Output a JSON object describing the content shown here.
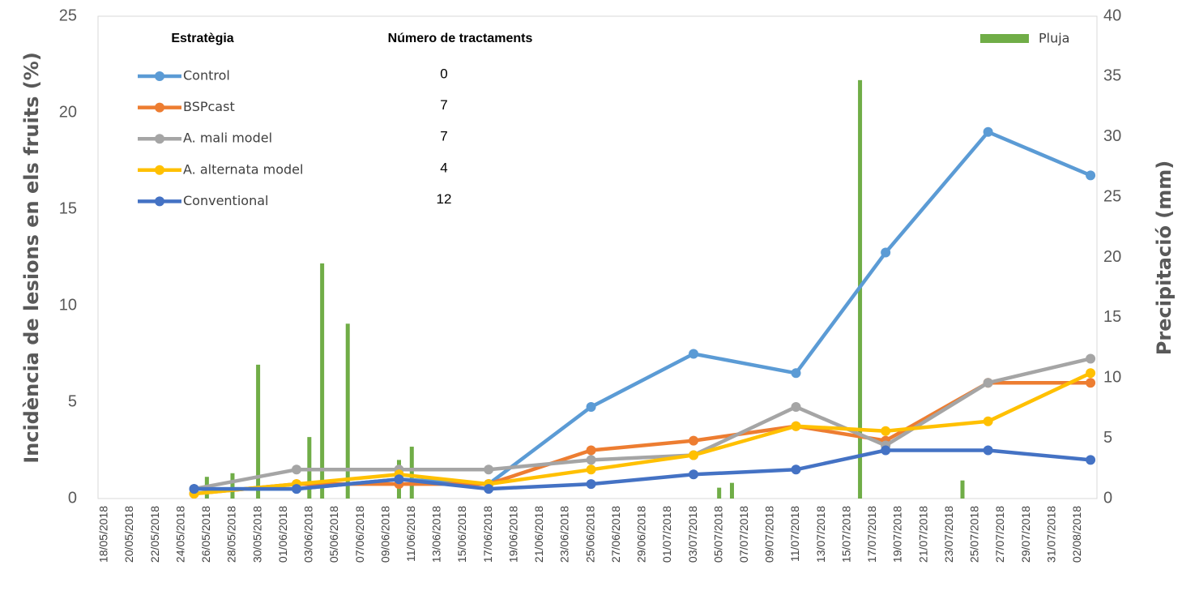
{
  "chart_data": {
    "type": "line",
    "y_label": "Incidència de lesions en els fruits (%)",
    "y2_label": "Precipitació (mm)",
    "legend_header": "Estratègia",
    "treatments_header": "Número de tractaments",
    "connect_gaps": true,
    "categories": [
      "18/05/2018",
      null,
      "20/05/2018",
      null,
      "22/05/2018",
      null,
      "24/05/2018",
      null,
      "26/05/2018",
      null,
      "28/05/2018",
      null,
      "30/05/2018",
      null,
      "01/06/2018",
      null,
      "03/06/2018",
      null,
      "05/06/2018",
      null,
      "07/06/2018",
      null,
      "09/06/2018",
      null,
      "11/06/2018",
      null,
      "13/06/2018",
      null,
      "15/06/2018",
      null,
      "17/06/2018",
      null,
      "19/06/2018",
      null,
      "21/06/2018",
      null,
      "23/06/2018",
      null,
      "25/06/2018",
      null,
      "27/06/2018",
      null,
      "29/06/2018",
      null,
      "01/07/2018",
      null,
      "03/07/2018",
      null,
      "05/07/2018",
      null,
      "07/07/2018",
      null,
      "09/07/2018",
      null,
      "11/07/2018",
      null,
      "13/07/2018",
      null,
      "15/07/2018",
      null,
      "17/07/2018",
      null,
      "19/07/2018",
      null,
      "21/07/2018",
      null,
      "23/07/2018",
      null,
      "25/07/2018",
      null,
      "27/07/2018",
      null,
      "29/07/2018",
      null,
      "31/07/2018",
      null,
      "02/08/2018",
      null
    ],
    "ylim": [
      0,
      25
    ],
    "yticks": [
      0,
      5,
      10,
      15,
      20,
      25
    ],
    "y2lim": [
      0,
      40
    ],
    "y2ticks": [
      0,
      5,
      10,
      15,
      20,
      25,
      30,
      35,
      40
    ],
    "series": [
      {
        "name": "Control",
        "color": "#5B9BD5",
        "treatments": 0,
        "values": [
          null,
          null,
          null,
          null,
          null,
          null,
          null,
          0.5,
          null,
          null,
          null,
          null,
          null,
          null,
          null,
          0.5,
          null,
          null,
          null,
          null,
          null,
          null,
          null,
          1.0,
          null,
          null,
          null,
          null,
          null,
          null,
          0.75,
          null,
          null,
          null,
          null,
          null,
          null,
          null,
          4.75,
          null,
          null,
          null,
          null,
          null,
          null,
          null,
          7.5,
          null,
          null,
          null,
          null,
          null,
          null,
          null,
          6.5,
          null,
          null,
          null,
          null,
          null,
          null,
          12.75,
          null,
          null,
          null,
          null,
          null,
          null,
          null,
          19,
          null,
          null,
          null,
          null,
          null,
          null,
          null,
          16.75
        ]
      },
      {
        "name": "BSPcast",
        "color": "#ED7D31",
        "treatments": 7,
        "values": [
          null,
          null,
          null,
          null,
          null,
          null,
          null,
          0.25,
          null,
          null,
          null,
          null,
          null,
          null,
          null,
          0.75,
          null,
          null,
          null,
          null,
          null,
          null,
          null,
          0.75,
          null,
          null,
          null,
          null,
          null,
          null,
          0.75,
          null,
          null,
          null,
          null,
          null,
          null,
          null,
          2.5,
          null,
          null,
          null,
          null,
          null,
          null,
          null,
          3.0,
          null,
          null,
          null,
          null,
          null,
          null,
          null,
          3.75,
          null,
          null,
          null,
          null,
          null,
          null,
          3.0,
          null,
          null,
          null,
          null,
          null,
          null,
          null,
          6.0,
          null,
          null,
          null,
          null,
          null,
          null,
          null,
          6.0
        ]
      },
      {
        "name": "A. mali model",
        "color": "#A5A5A5",
        "treatments": 7,
        "values": [
          null,
          null,
          null,
          null,
          null,
          null,
          null,
          0.5,
          null,
          null,
          null,
          null,
          null,
          null,
          null,
          1.5,
          null,
          null,
          null,
          null,
          null,
          null,
          null,
          1.5,
          null,
          null,
          null,
          null,
          null,
          null,
          1.5,
          null,
          null,
          null,
          null,
          null,
          null,
          null,
          2.0,
          null,
          null,
          null,
          null,
          null,
          null,
          null,
          2.25,
          null,
          null,
          null,
          null,
          null,
          null,
          null,
          4.75,
          null,
          null,
          null,
          null,
          null,
          null,
          2.75,
          null,
          null,
          null,
          null,
          null,
          null,
          null,
          6.0,
          null,
          null,
          null,
          null,
          null,
          null,
          null,
          7.25
        ]
      },
      {
        "name": "A. alternata model",
        "color": "#FFC000",
        "treatments": 4,
        "values": [
          null,
          null,
          null,
          null,
          null,
          null,
          null,
          0.25,
          null,
          null,
          null,
          null,
          null,
          null,
          null,
          0.75,
          null,
          null,
          null,
          null,
          null,
          null,
          null,
          1.25,
          null,
          null,
          null,
          null,
          null,
          null,
          0.75,
          null,
          null,
          null,
          null,
          null,
          null,
          null,
          1.5,
          null,
          null,
          null,
          null,
          null,
          null,
          null,
          2.25,
          null,
          null,
          null,
          null,
          null,
          null,
          null,
          3.75,
          null,
          null,
          null,
          null,
          null,
          null,
          3.5,
          null,
          null,
          null,
          null,
          null,
          null,
          null,
          4.0,
          null,
          null,
          null,
          null,
          null,
          null,
          null,
          6.5
        ]
      },
      {
        "name": "Conventional",
        "color": "#4472C4",
        "treatments": 12,
        "values": [
          null,
          null,
          null,
          null,
          null,
          null,
          null,
          0.5,
          null,
          null,
          null,
          null,
          null,
          null,
          null,
          0.5,
          null,
          null,
          null,
          null,
          null,
          null,
          null,
          1.0,
          null,
          null,
          null,
          null,
          null,
          null,
          0.5,
          null,
          null,
          null,
          null,
          null,
          null,
          null,
          0.75,
          null,
          null,
          null,
          null,
          null,
          null,
          null,
          1.25,
          null,
          null,
          null,
          null,
          null,
          null,
          null,
          1.5,
          null,
          null,
          null,
          null,
          null,
          null,
          2.5,
          null,
          null,
          null,
          null,
          null,
          null,
          null,
          2.5,
          null,
          null,
          null,
          null,
          null,
          null,
          null,
          2.0
        ]
      },
      {
        "name": "Pluja",
        "color": "#70AD47",
        "type": "bar",
        "axis": "y2",
        "values": [
          0,
          0,
          0,
          0,
          0,
          0,
          0,
          0,
          1.8,
          0,
          2.1,
          0,
          11.1,
          0,
          0,
          0,
          5.1,
          19.5,
          0,
          14.5,
          0,
          0,
          0,
          3.2,
          4.3,
          0,
          0,
          0,
          0,
          0,
          0,
          0,
          0,
          0,
          0,
          0,
          0,
          0,
          0,
          0,
          0,
          0,
          0,
          0,
          0,
          0,
          0,
          0,
          0.9,
          1.3,
          0,
          0,
          0,
          0,
          0,
          0,
          0,
          0,
          0,
          34.7,
          0,
          0,
          0,
          0,
          0,
          0,
          0,
          1.5,
          0,
          0,
          0,
          0,
          0,
          0,
          0,
          0,
          0,
          0
        ]
      }
    ]
  }
}
